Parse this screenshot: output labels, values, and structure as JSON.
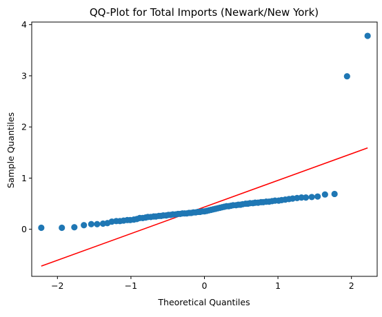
{
  "chart_data": {
    "type": "scatter",
    "title": "QQ-Plot for Total Imports (Newark/New York)",
    "xlabel": "Theoretical Quantiles",
    "ylabel": "Sample Quantiles",
    "xlim": [
      -2.35,
      2.35
    ],
    "ylim": [
      -0.92,
      4.05
    ],
    "xticks": [
      -2,
      -1,
      0,
      1,
      2
    ],
    "xtick_labels": [
      "−2",
      "−1",
      "0",
      "1",
      "2"
    ],
    "yticks": [
      0,
      1,
      2,
      3,
      4
    ],
    "ytick_labels": [
      "0",
      "1",
      "2",
      "3",
      "4"
    ],
    "grid": false,
    "series": [
      {
        "kind": "points",
        "color": "#1f77b4",
        "x": [
          -2.22,
          -1.94,
          -1.77,
          -1.64,
          -1.54,
          -1.46,
          -1.38,
          -1.32,
          -1.26,
          -1.2,
          -1.15,
          -1.1,
          -1.05,
          -1.01,
          -0.96,
          -0.92,
          -0.88,
          -0.84,
          -0.8,
          -0.77,
          -0.73,
          -0.69,
          -0.66,
          -0.62,
          -0.59,
          -0.56,
          -0.52,
          -0.49,
          -0.46,
          -0.43,
          -0.39,
          -0.36,
          -0.33,
          -0.3,
          -0.27,
          -0.24,
          -0.21,
          -0.18,
          -0.15,
          -0.12,
          -0.09,
          -0.06,
          -0.03,
          0.0,
          0.03,
          0.06,
          0.09,
          0.12,
          0.15,
          0.18,
          0.21,
          0.24,
          0.27,
          0.3,
          0.33,
          0.36,
          0.39,
          0.43,
          0.46,
          0.49,
          0.52,
          0.56,
          0.59,
          0.62,
          0.66,
          0.69,
          0.73,
          0.77,
          0.8,
          0.84,
          0.88,
          0.92,
          0.96,
          1.01,
          1.05,
          1.1,
          1.15,
          1.2,
          1.26,
          1.32,
          1.38,
          1.46,
          1.54,
          1.64,
          1.77,
          1.94,
          2.22
        ],
        "y": [
          0.03,
          0.03,
          0.04,
          0.08,
          0.1,
          0.1,
          0.11,
          0.12,
          0.15,
          0.16,
          0.16,
          0.17,
          0.18,
          0.18,
          0.19,
          0.2,
          0.22,
          0.22,
          0.23,
          0.24,
          0.24,
          0.25,
          0.25,
          0.26,
          0.26,
          0.27,
          0.27,
          0.28,
          0.28,
          0.29,
          0.29,
          0.3,
          0.3,
          0.31,
          0.31,
          0.31,
          0.32,
          0.32,
          0.33,
          0.33,
          0.34,
          0.34,
          0.35,
          0.35,
          0.36,
          0.37,
          0.38,
          0.39,
          0.4,
          0.41,
          0.42,
          0.43,
          0.44,
          0.45,
          0.45,
          0.46,
          0.47,
          0.47,
          0.48,
          0.48,
          0.49,
          0.5,
          0.5,
          0.51,
          0.51,
          0.52,
          0.52,
          0.53,
          0.53,
          0.54,
          0.54,
          0.55,
          0.56,
          0.56,
          0.57,
          0.58,
          0.59,
          0.6,
          0.61,
          0.62,
          0.62,
          0.63,
          0.64,
          0.68,
          0.69,
          2.99,
          3.78
        ]
      },
      {
        "kind": "line",
        "color": "#ff0000",
        "x": [
          -2.22,
          2.22
        ],
        "y": [
          -0.72,
          1.59
        ]
      }
    ]
  }
}
